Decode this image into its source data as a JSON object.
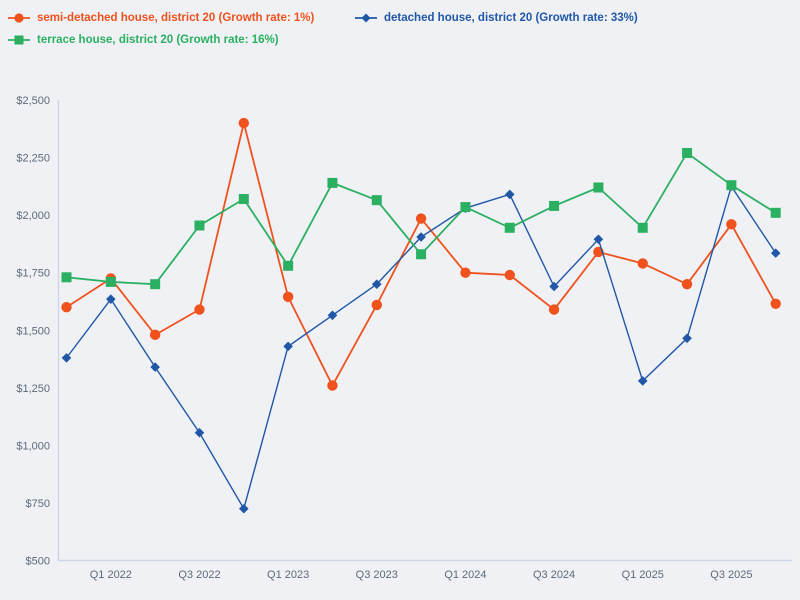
{
  "legend": {
    "items": [
      {
        "label": "semi-detached house, district 20 (Growth rate: 1%)",
        "color": "#f0521e",
        "marker": "circle"
      },
      {
        "label": "detached house, district 20 (Growth rate: 33%)",
        "color": "#2057a7",
        "marker": "diamond"
      },
      {
        "label": "terrace house, district 20 (Growth rate: 16%)",
        "color": "#2bb062",
        "marker": "square"
      }
    ]
  },
  "chart_data": {
    "type": "line",
    "title": "",
    "xlabel": "",
    "ylabel": "",
    "grid": false,
    "legend_position": "top-left",
    "x": [
      "Q4 2021",
      "Q1 2022",
      "Q2 2022",
      "Q3 2022",
      "Q4 2022",
      "Q1 2023",
      "Q2 2023",
      "Q3 2023",
      "Q4 2023",
      "Q1 2024",
      "Q2 2024",
      "Q3 2024",
      "Q4 2024",
      "Q1 2025",
      "Q2 2025",
      "Q3 2025",
      "Q4 2025"
    ],
    "x_tick_labels": [
      "Q1 2022",
      "Q3 2022",
      "Q1 2023",
      "Q3 2023",
      "Q1 2024",
      "Q3 2024",
      "Q1 2025",
      "Q3 2025"
    ],
    "x_tick_indices": [
      1,
      3,
      5,
      7,
      9,
      11,
      13,
      15
    ],
    "ylim": [
      500,
      2500
    ],
    "y_ticks": {
      "values": [
        500,
        750,
        1000,
        1250,
        1500,
        1750,
        2000,
        2250,
        2500
      ],
      "labels": [
        "$500",
        "$750",
        "$1,000",
        "$1,250",
        "$1,500",
        "$1,750",
        "$2,000",
        "$2,250",
        "$2,500"
      ]
    },
    "series": [
      {
        "name": "semi-detached house, district 20",
        "growth_rate": "1%",
        "color": "#f0521e",
        "marker": "circle",
        "values": [
          1600,
          1725,
          1480,
          1590,
          2400,
          1645,
          1260,
          1610,
          1985,
          1750,
          1740,
          1590,
          1840,
          1790,
          1700,
          1960,
          1615
        ]
      },
      {
        "name": "detached house, district 20",
        "growth_rate": "33%",
        "color": "#2057a7",
        "marker": "diamond",
        "values": [
          1380,
          1635,
          1340,
          1055,
          725,
          1430,
          1565,
          1700,
          1905,
          2030,
          2090,
          1690,
          1895,
          1280,
          1465,
          2125,
          1835
        ]
      },
      {
        "name": "terrace house, district 20",
        "growth_rate": "16%",
        "color": "#2bb062",
        "marker": "square",
        "values": [
          1730,
          1710,
          1700,
          1955,
          2070,
          1780,
          2140,
          2065,
          1830,
          2035,
          1945,
          2040,
          2120,
          1945,
          2270,
          2130,
          2010
        ]
      }
    ]
  },
  "colors": {
    "background": "#f0f1f4",
    "axis_line": "#cdd6e7",
    "tick_text": "#5d6a79"
  }
}
